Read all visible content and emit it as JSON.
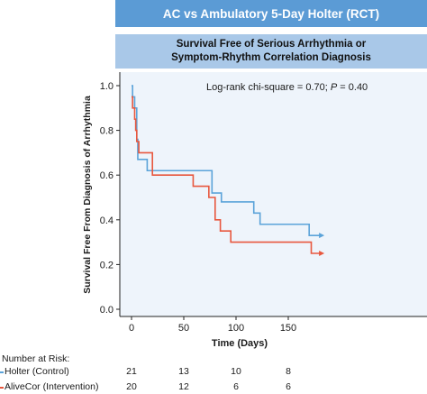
{
  "banner": {
    "title": "AC vs Ambulatory 5-Day Holter (RCT)"
  },
  "subtitle": {
    "line1": "Survival Free of Serious Arrhythmia or",
    "line2": "Symptom-Rhythm Correlation Diagnosis"
  },
  "chart_data": {
    "type": "line",
    "title": "Survival Free of Serious Arrhythmia or Symptom-Rhythm Correlation Diagnosis",
    "xlabel": "Time (Days)",
    "ylabel": "Survival Free From Diagnosis of Arrhythmia",
    "xlim": [
      -7,
      190
    ],
    "ylim": [
      0,
      1.0
    ],
    "x_ticks": [
      0,
      50,
      100,
      150
    ],
    "y_ticks": [
      0.0,
      0.2,
      0.4,
      0.6,
      0.8,
      1.0
    ],
    "y_tick_labels": [
      "0.0",
      "0.2",
      "0.4",
      "0.6",
      "0.8",
      "1.0"
    ],
    "step": true,
    "grid": false,
    "annotation": {
      "text_pre": "Log-rank chi-square = 0.70; ",
      "text_p": "P",
      "text_post": " = 0.40"
    },
    "series": [
      {
        "name": "Holter (Control)",
        "color": "#5ba3d9",
        "x": [
          0,
          1,
          3,
          5,
          6,
          9,
          15,
          77,
          86,
          117,
          123,
          170,
          182
        ],
        "y": [
          1.0,
          0.95,
          0.9,
          0.76,
          0.67,
          0.67,
          0.62,
          0.52,
          0.48,
          0.43,
          0.38,
          0.33,
          0.33
        ],
        "censored": [
          [
            182,
            0.33
          ]
        ]
      },
      {
        "name": "AliveCor (Intervention)",
        "color": "#e8573e",
        "x": [
          0,
          1,
          3,
          4,
          5,
          7,
          20,
          59,
          74,
          80,
          85,
          95,
          172,
          182
        ],
        "y": [
          0.95,
          0.9,
          0.85,
          0.8,
          0.75,
          0.7,
          0.6,
          0.55,
          0.5,
          0.4,
          0.35,
          0.3,
          0.25,
          0.25
        ],
        "censored": [
          [
            182,
            0.25
          ]
        ]
      }
    ]
  },
  "risk_table": {
    "title": "Number at Risk:",
    "timepoints": [
      0,
      50,
      100,
      150
    ],
    "rows": [
      {
        "label": "Holter (Control)",
        "color": "#5ba3d9",
        "values": [
          "21",
          "13",
          "10",
          "8"
        ]
      },
      {
        "label": "AliveCor (Intervention)",
        "color": "#e8573e",
        "values": [
          "20",
          "12",
          "6",
          "6"
        ]
      }
    ]
  }
}
